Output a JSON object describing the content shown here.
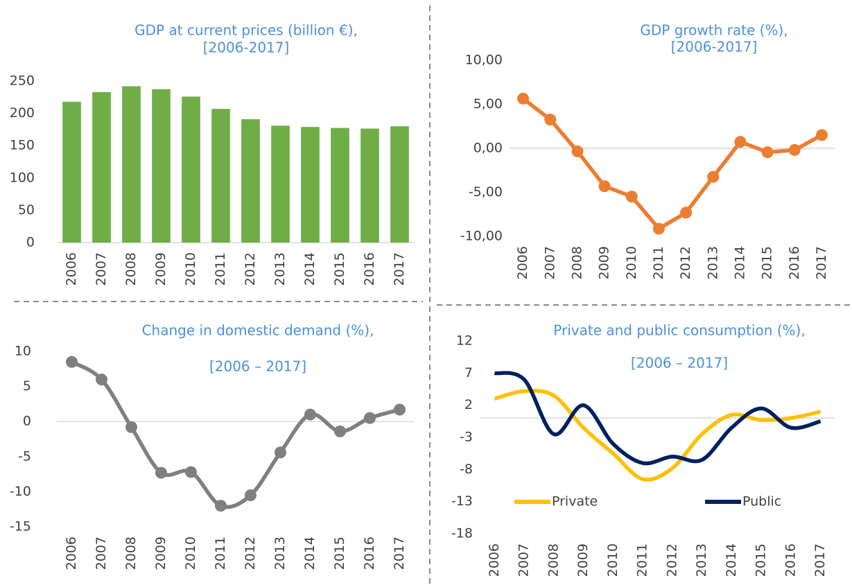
{
  "chart_data": [
    {
      "type": "bar",
      "title": "GDP at current prices (billion €),",
      "subtitle": "[2006-2017]",
      "categories": [
        "2006",
        "2007",
        "2008",
        "2009",
        "2010",
        "2011",
        "2012",
        "2013",
        "2014",
        "2015",
        "2016",
        "2017"
      ],
      "values": [
        218,
        233,
        242,
        237.5,
        226,
        207,
        191,
        181,
        179,
        177.5,
        176.5,
        180
      ],
      "color": "#70ad47",
      "ylim": [
        0,
        250
      ],
      "yticks": [
        0,
        50,
        100,
        150,
        200,
        250
      ]
    },
    {
      "type": "line",
      "title": "GDP growth rate (%),",
      "subtitle": "[2006-2017]",
      "categories": [
        "2006",
        "2007",
        "2008",
        "2009",
        "2010",
        "2011",
        "2012",
        "2013",
        "2014",
        "2015",
        "2016",
        "2017"
      ],
      "series": [
        {
          "name": "GDP growth rate",
          "color": "#ed7d31",
          "values": [
            5.65,
            3.27,
            -0.34,
            -4.3,
            -5.48,
            -9.13,
            -7.3,
            -3.24,
            0.74,
            -0.44,
            -0.19,
            1.51
          ]
        }
      ],
      "markers": true,
      "smooth": false,
      "ylim": [
        -10,
        10
      ],
      "yticks": [
        {
          "value": -10,
          "label": "-10,00"
        },
        {
          "value": -5,
          "label": "-5,00"
        },
        {
          "value": 0,
          "label": "0,00"
        },
        {
          "value": 5,
          "label": "5,00"
        },
        {
          "value": 10,
          "label": "10,00"
        }
      ]
    },
    {
      "type": "line",
      "title": "Change in domestic demand (%),",
      "subtitle": "[2006 – 2017]",
      "categories": [
        "2006",
        "2007",
        "2008",
        "2009",
        "2010",
        "2011",
        "2012",
        "2013",
        "2014",
        "2015",
        "2016",
        "2017"
      ],
      "series": [
        {
          "name": "Domestic demand",
          "color": "#7f7f7f",
          "values": [
            8.5,
            6,
            -0.8,
            -7.3,
            -7.2,
            -12,
            -10.5,
            -4.4,
            1,
            -1.4,
            0.5,
            1.7
          ]
        }
      ],
      "markers": true,
      "smooth": true,
      "ylim": [
        -15,
        10
      ],
      "yticks": [
        -15,
        -10,
        -5,
        0,
        5,
        10
      ]
    },
    {
      "type": "line",
      "title": "Private and public consumption (%),",
      "subtitle": "[2006 – 2017]",
      "categories": [
        "2006",
        "2007",
        "2008",
        "2009",
        "2010",
        "2011",
        "2012",
        "2013",
        "2014",
        "2015",
        "2016",
        "2017"
      ],
      "series": [
        {
          "name": "Private",
          "color": "#ffc000",
          "values": [
            3,
            4.2,
            3.5,
            -1.5,
            -5.5,
            -9.5,
            -7.8,
            -2.5,
            0.5,
            -0.3,
            0,
            1
          ]
        },
        {
          "name": "Public",
          "color": "#002060",
          "values": [
            7,
            6,
            -2.5,
            2,
            -4,
            -7,
            -6,
            -6.5,
            -1.5,
            1.5,
            -1.5,
            -0.5
          ]
        }
      ],
      "markers": false,
      "smooth": true,
      "legend": "bottom",
      "ylim": [
        -18,
        12
      ],
      "yticks": [
        -18,
        -13,
        -8,
        -3,
        2,
        7,
        12
      ]
    }
  ]
}
